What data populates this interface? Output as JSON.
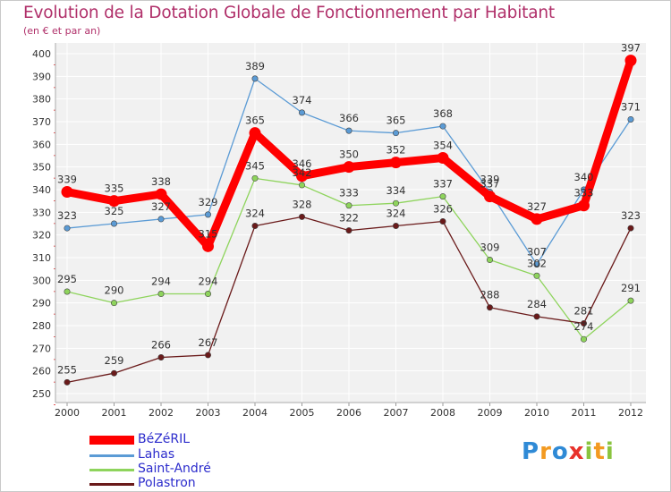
{
  "title": "Evolution de la Dotation Globale de Fonctionnement par Habitant",
  "subtitle": "(en € et par an)",
  "logo": {
    "letters": [
      "P",
      "r",
      "o",
      "x",
      "i",
      "t",
      "i"
    ],
    "colors": [
      "#2f8ad6",
      "#f39a21",
      "#2f8ad6",
      "#e8322b",
      "#8ac43f",
      "#f39a21",
      "#8ac43f"
    ]
  },
  "chart_data": {
    "type": "line",
    "title": "Evolution de la Dotation Globale de Fonctionnement par Habitant",
    "subtitle": "(en € et par an)",
    "xlabel": "",
    "ylabel": "",
    "ylim": [
      250,
      400
    ],
    "ytick_step": 10,
    "grid": true,
    "legend_position": "bottom-left",
    "categories": [
      "2000",
      "2001",
      "2002",
      "2003",
      "2004",
      "2005",
      "2006",
      "2007",
      "2008",
      "2009",
      "2010",
      "2011",
      "2012"
    ],
    "series": [
      {
        "name": "Lahas",
        "color": "#5b9bd5",
        "values": [
          323,
          325,
          327,
          329,
          389,
          374,
          366,
          365,
          368,
          339,
          307,
          340,
          371
        ],
        "labels": [
          "323",
          "325",
          "327",
          "329",
          "389",
          "374",
          "366",
          "365",
          "368",
          "339",
          "307",
          "340",
          "371"
        ]
      },
      {
        "name": "Saint-André",
        "color": "#8ed45c",
        "values": [
          295,
          290,
          294,
          294,
          345,
          342,
          333,
          334,
          337,
          309,
          302,
          274,
          291
        ],
        "labels": [
          "295",
          "290",
          "294",
          "294",
          "345",
          "342",
          "333",
          "334",
          "337",
          "309",
          "302",
          "274",
          "291"
        ]
      },
      {
        "name": "Polastron",
        "color": "#6a1a1a",
        "values": [
          255,
          259,
          266,
          267,
          324,
          328,
          322,
          324,
          326,
          288,
          284,
          281,
          323
        ],
        "labels": [
          "255",
          "259",
          "266",
          "267",
          "324",
          "328",
          "322",
          "324",
          "326",
          "288",
          "284",
          "281",
          "323"
        ]
      },
      {
        "name": "BéZéRIL",
        "color": "#ff0000",
        "values": [
          339,
          335,
          338,
          315,
          365,
          346,
          350,
          352,
          354,
          337,
          327,
          333,
          397
        ],
        "labels": [
          "339",
          "335",
          "338",
          "315",
          "365",
          "346",
          "350",
          "352",
          "354",
          "337",
          "327",
          "333",
          "397"
        ]
      }
    ],
    "legend": [
      "BéZéRIL",
      "Lahas",
      "Saint-André",
      "Polastron"
    ]
  }
}
